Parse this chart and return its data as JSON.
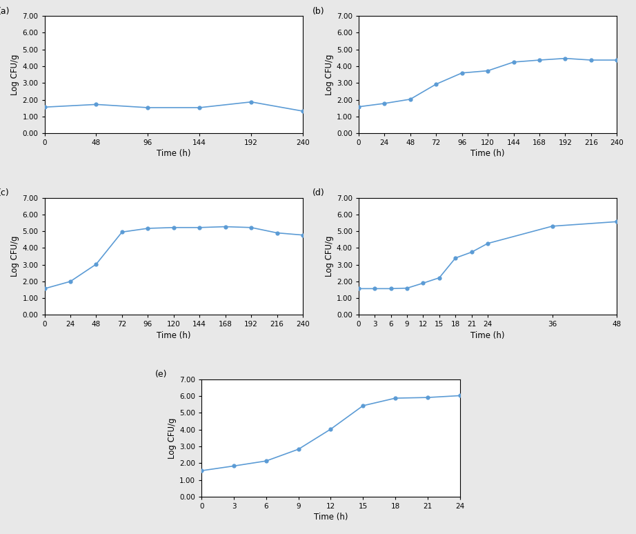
{
  "subplots": [
    {
      "label": "(a)",
      "x": [
        0,
        48,
        96,
        144,
        192,
        240
      ],
      "y": [
        1.56,
        1.72,
        1.53,
        1.53,
        1.87,
        1.32
      ],
      "xticks": [
        0,
        48,
        96,
        144,
        192,
        240
      ],
      "xlim": [
        0,
        240
      ],
      "ylim": [
        0.0,
        7.0
      ],
      "yticks": [
        0.0,
        1.0,
        2.0,
        3.0,
        4.0,
        5.0,
        6.0,
        7.0
      ],
      "xlabel": "Time (h)",
      "ylabel": "Log CFU/g"
    },
    {
      "label": "(b)",
      "x": [
        0,
        24,
        48,
        72,
        96,
        120,
        144,
        168,
        192,
        216,
        240
      ],
      "y": [
        1.58,
        1.78,
        2.03,
        2.93,
        3.6,
        3.73,
        4.25,
        4.37,
        4.47,
        4.37,
        4.37
      ],
      "xticks": [
        0,
        24,
        48,
        72,
        96,
        120,
        144,
        168,
        192,
        216,
        240
      ],
      "xlim": [
        0,
        240
      ],
      "ylim": [
        0.0,
        7.0
      ],
      "yticks": [
        0.0,
        1.0,
        2.0,
        3.0,
        4.0,
        5.0,
        6.0,
        7.0
      ],
      "xlabel": "Time (h)",
      "ylabel": "Log CFU/g"
    },
    {
      "label": "(c)",
      "x": [
        0,
        24,
        48,
        72,
        96,
        120,
        144,
        168,
        192,
        216,
        240
      ],
      "y": [
        1.57,
        2.0,
        3.03,
        4.95,
        5.17,
        5.22,
        5.22,
        5.27,
        5.22,
        4.9,
        4.77
      ],
      "xticks": [
        0,
        24,
        48,
        72,
        96,
        120,
        144,
        168,
        192,
        216,
        240
      ],
      "xlim": [
        0,
        240
      ],
      "ylim": [
        0.0,
        7.0
      ],
      "yticks": [
        0.0,
        1.0,
        2.0,
        3.0,
        4.0,
        5.0,
        6.0,
        7.0
      ],
      "xlabel": "Time (h)",
      "ylabel": "Log CFU/g"
    },
    {
      "label": "(d)",
      "x": [
        0,
        3,
        6,
        9,
        12,
        15,
        18,
        21,
        24,
        36,
        48
      ],
      "y": [
        1.57,
        1.57,
        1.57,
        1.6,
        1.9,
        2.22,
        3.4,
        3.75,
        4.27,
        5.3,
        5.57
      ],
      "xticks": [
        0,
        3,
        6,
        9,
        12,
        15,
        18,
        21,
        24,
        36,
        48
      ],
      "xlim": [
        0,
        48
      ],
      "ylim": [
        0.0,
        7.0
      ],
      "yticks": [
        0.0,
        1.0,
        2.0,
        3.0,
        4.0,
        5.0,
        6.0,
        7.0
      ],
      "xlabel": "Time (h)",
      "ylabel": "Log CFU/g"
    },
    {
      "label": "(e)",
      "x": [
        0,
        3,
        6,
        9,
        12,
        15,
        18,
        21,
        24
      ],
      "y": [
        1.55,
        1.83,
        2.13,
        2.83,
        4.03,
        5.43,
        5.88,
        5.92,
        6.03
      ],
      "xticks": [
        0,
        3,
        6,
        9,
        12,
        15,
        18,
        21,
        24
      ],
      "xlim": [
        0,
        24
      ],
      "ylim": [
        0.0,
        7.0
      ],
      "yticks": [
        0.0,
        1.0,
        2.0,
        3.0,
        4.0,
        5.0,
        6.0,
        7.0
      ],
      "xlabel": "Time (h)",
      "ylabel": "Log CFU/g"
    }
  ],
  "line_color": "#5B9BD5",
  "line_width": 1.2,
  "marker": "o",
  "marker_size": 3.5,
  "background_color": "#ffffff",
  "label_fontsize": 9,
  "tick_fontsize": 7.5,
  "axis_label_fontsize": 8.5,
  "figure_bg": "#e8e8e8"
}
